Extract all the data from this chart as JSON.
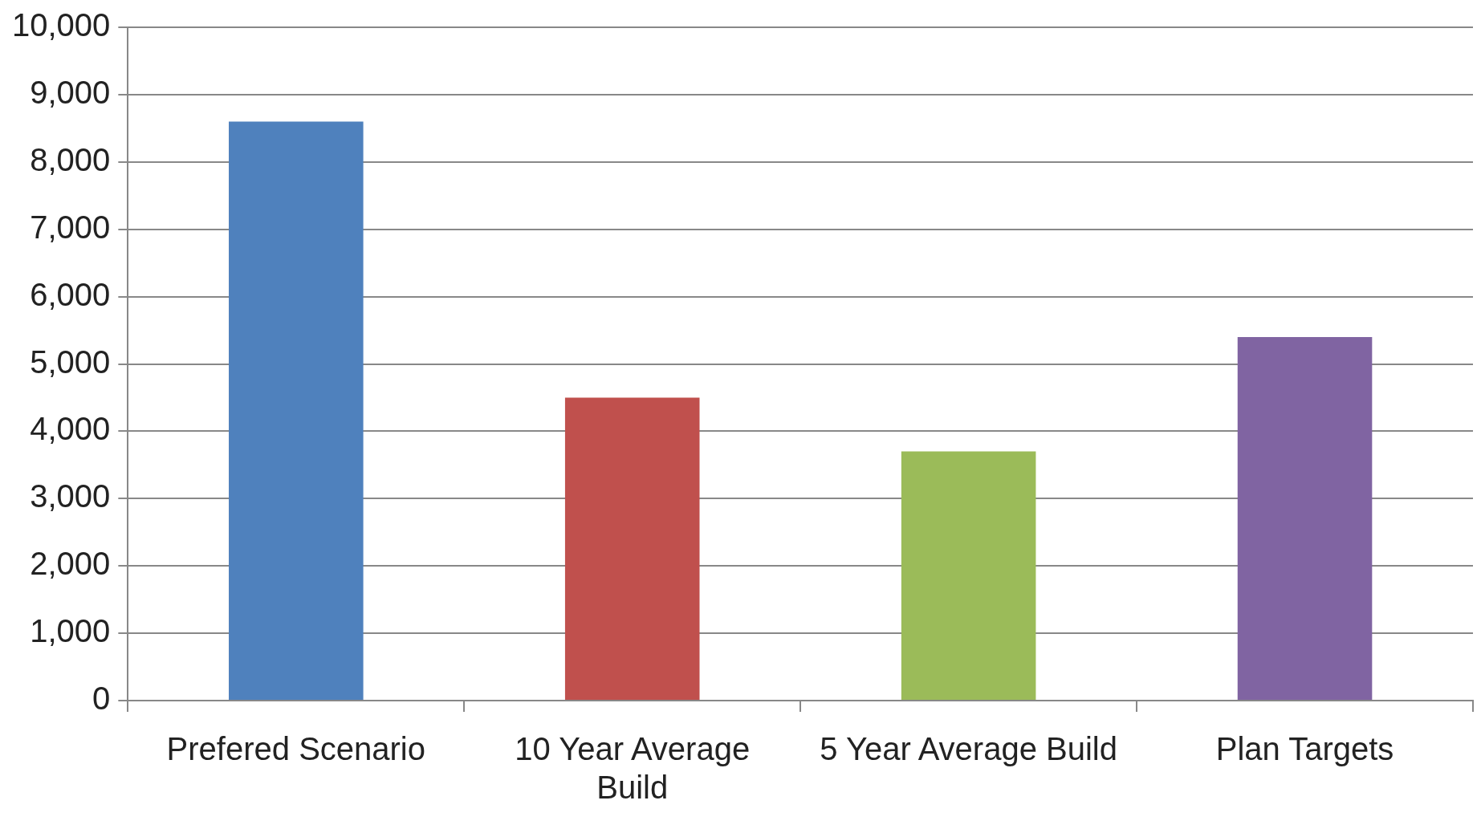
{
  "chart_data": {
    "type": "bar",
    "categories": [
      "Prefered Scenario",
      "10 Year Average Build",
      "5 Year Average Build",
      "Plan Targets"
    ],
    "values": [
      8600,
      4500,
      3700,
      5400
    ],
    "colors": [
      "#4f81bd",
      "#c0504d",
      "#9bbb59",
      "#8064a2"
    ],
    "ylim": [
      0,
      10000
    ],
    "yticks": [
      0,
      {
        "value": 1000,
        "label": "1,000"
      },
      {
        "value": 2000,
        "label": "2,000"
      },
      {
        "value": 3000,
        "label": "3,000"
      },
      {
        "value": 4000,
        "label": "4,000"
      },
      {
        "value": 5000,
        "label": "5,000"
      },
      {
        "value": 6000,
        "label": "6,000"
      },
      {
        "value": 7000,
        "label": "7,000"
      },
      {
        "value": 8000,
        "label": "8,000"
      },
      {
        "value": 9000,
        "label": "9,000"
      },
      {
        "value": 10000,
        "label": "10,000"
      }
    ],
    "grid": "y",
    "legend": false
  }
}
